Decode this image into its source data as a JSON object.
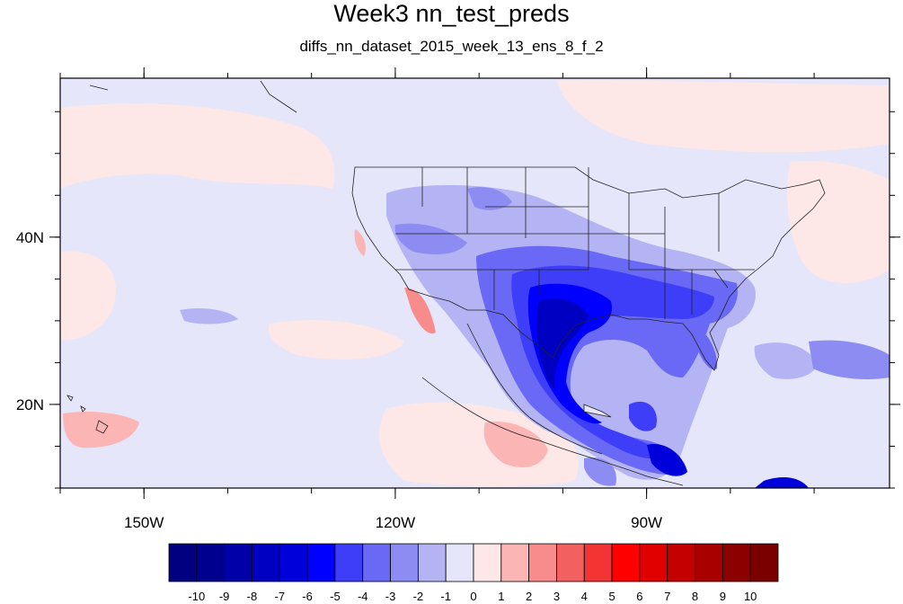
{
  "title": "Week3 nn_test_preds",
  "subtitle": "diffs_nn_dataset_2015_week_13_ens_8_f_2",
  "map": {
    "lon_range": [
      -160,
      -61
    ],
    "lat_range": [
      10,
      59
    ],
    "x_ticks": [
      {
        "lon": -150,
        "label": "150W"
      },
      {
        "lon": -120,
        "label": "120W"
      },
      {
        "lon": -90,
        "label": "90W"
      }
    ],
    "y_ticks": [
      {
        "lat": 40,
        "label": "40N"
      },
      {
        "lat": 20,
        "label": "20N"
      }
    ],
    "background_color": "#e6e6fa"
  },
  "colorbar": {
    "labels": [
      "-10",
      "-9",
      "-8",
      "-7",
      "-6",
      "-5",
      "-4",
      "-3",
      "-2",
      "-1",
      "0",
      "1",
      "2",
      "3",
      "4",
      "5",
      "6",
      "7",
      "8",
      "9",
      "10"
    ],
    "colors": [
      "#000080",
      "#00008f",
      "#0000a8",
      "#0000c2",
      "#0000db",
      "#0000ff",
      "#3e3ef8",
      "#6969f5",
      "#8c8cf2",
      "#b4b4f5",
      "#e6e6fa",
      "#fde7e7",
      "#fbb5b5",
      "#f88c8c",
      "#f26060",
      "#f23434",
      "#ff0000",
      "#e00000",
      "#c40000",
      "#a80000",
      "#8c0000",
      "#7a0000"
    ]
  }
}
